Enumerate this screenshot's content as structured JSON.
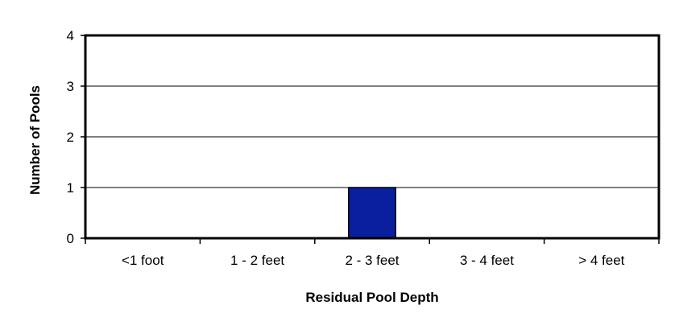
{
  "chart_data": {
    "type": "bar",
    "title": "",
    "xlabel": "Residual Pool Depth",
    "ylabel": "Number of Pools",
    "categories": [
      "<1 foot",
      "1 - 2 feet",
      "2 - 3 feet",
      "3 - 4 feet",
      "> 4 feet"
    ],
    "values": [
      0,
      0,
      1,
      0,
      0
    ],
    "ylim": [
      0,
      4
    ],
    "yticks": [
      "0",
      "1",
      "2",
      "3",
      "4"
    ],
    "grid": true,
    "legend": "none",
    "bar_color": "#0a1f9e"
  }
}
